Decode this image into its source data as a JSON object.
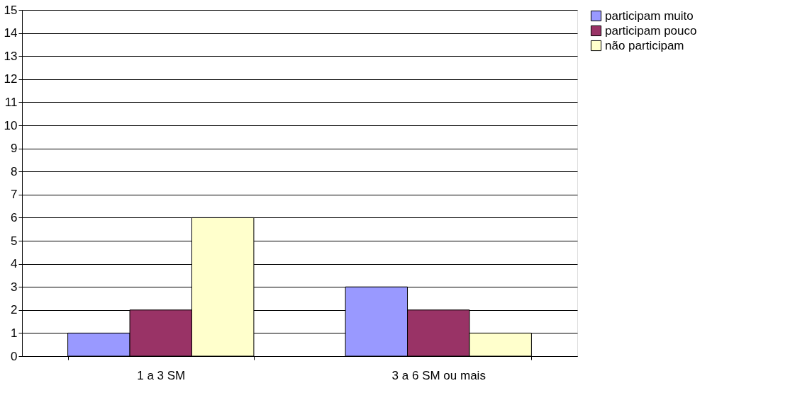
{
  "chart_data": {
    "type": "bar",
    "categories": [
      "1 a 3 SM",
      "3 a 6 SM ou mais"
    ],
    "series": [
      {
        "name": "participam muito",
        "color": "#9999ff",
        "values": [
          1,
          3
        ]
      },
      {
        "name": "participam pouco",
        "color": "#993366",
        "values": [
          2,
          2
        ]
      },
      {
        "name": "não participam",
        "color": "#ffffcc",
        "values": [
          6,
          1
        ]
      }
    ],
    "ylim": [
      0,
      15
    ],
    "yticks": [
      0,
      1,
      2,
      3,
      4,
      5,
      6,
      7,
      8,
      9,
      10,
      11,
      12,
      13,
      14,
      15
    ],
    "grid": "y",
    "legend": "right"
  }
}
